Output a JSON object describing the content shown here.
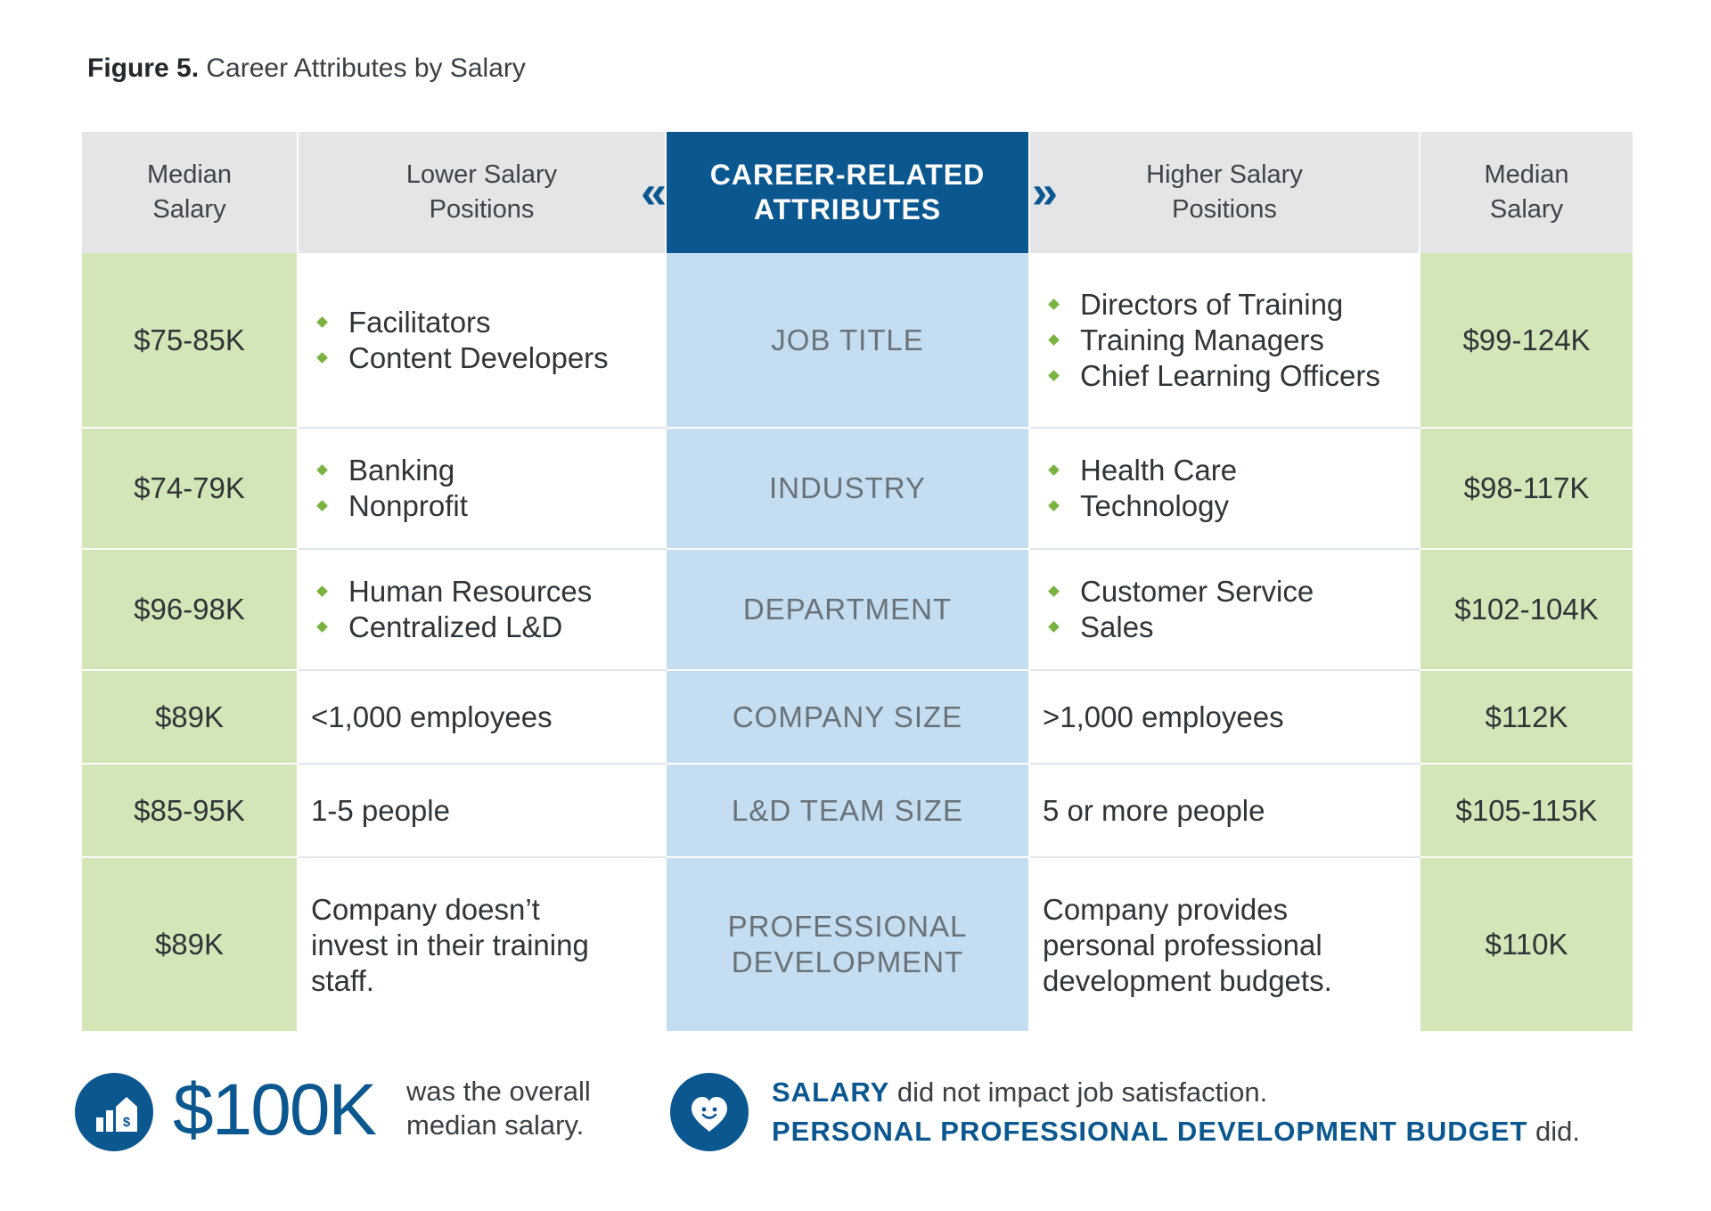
{
  "figure": {
    "label": "Figure 5.",
    "title": "Career Attributes by Salary"
  },
  "headers": {
    "left_median": "Median Salary",
    "lower": "Lower Salary Positions",
    "center": "CAREER-RELATED ATTRIBUTES",
    "higher": "Higher Salary Positions",
    "right_median": "Median Salary",
    "chevron_left": "«",
    "chevron_right": "»"
  },
  "rows": [
    {
      "low_salary": "$75-85K",
      "lower_items": [
        "Facilitators",
        "Content Developers"
      ],
      "attribute": "JOB TITLE",
      "higher_items": [
        "Directors of Training",
        "Training Managers",
        "Chief Learning Officers"
      ],
      "high_salary": "$99-124K"
    },
    {
      "low_salary": "$74-79K",
      "lower_items": [
        "Banking",
        "Nonprofit"
      ],
      "attribute": "INDUSTRY",
      "higher_items": [
        "Health Care",
        "Technology"
      ],
      "high_salary": "$98-117K"
    },
    {
      "low_salary": "$96-98K",
      "lower_items": [
        "Human Resources",
        "Centralized L&D"
      ],
      "attribute": "DEPARTMENT",
      "higher_items": [
        "Customer Service",
        "Sales"
      ],
      "high_salary": "$102-104K"
    },
    {
      "low_salary": "$89K",
      "lower_text": "<1,000 employees",
      "attribute": "COMPANY SIZE",
      "higher_text": ">1,000 employees",
      "high_salary": "$112K"
    },
    {
      "low_salary": "$85-95K",
      "lower_text": "1-5 people",
      "attribute": "L&D TEAM SIZE",
      "higher_text": "5 or more people",
      "high_salary": "$105-115K"
    },
    {
      "low_salary": "$89K",
      "lower_text": "Company doesn’t invest in their training staff.",
      "attribute": "PROFESSIONAL DEVELOPMENT",
      "higher_text": "Company provides personal professional development budgets.",
      "high_salary": "$110K"
    }
  ],
  "footer": {
    "overall_value": "$100K",
    "overall_text": "was the overall median salary.",
    "salary_keyword": "SALARY",
    "salary_rest": " did not impact job satisfaction.",
    "budget_keyword": "PERSONAL PROFESSIONAL DEVELOPMENT BUDGET",
    "budget_rest": " did.",
    "icon_left": "house-dollar-chart-icon",
    "icon_right": "heart-smile-icon"
  },
  "colors": {
    "accent_blue": "#0b5790",
    "salary_green": "#d3e6b8",
    "attribute_blue": "#c4ddf0",
    "bullet_green": "#7ab342",
    "header_gray": "#e4e5e6"
  }
}
